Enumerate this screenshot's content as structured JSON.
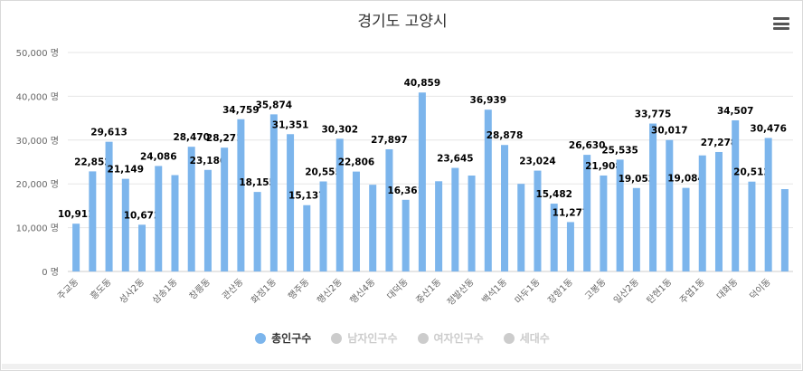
{
  "chart_data": {
    "type": "bar",
    "title": "경기도 고양시",
    "ylim": [
      0,
      50000
    ],
    "yticks": [
      {
        "value": 0,
        "label": "0 명"
      },
      {
        "value": 10000,
        "label": "10,000 명"
      },
      {
        "value": 20000,
        "label": "20,000 명"
      },
      {
        "value": 30000,
        "label": "30,000 명"
      },
      {
        "value": 40000,
        "label": "40,000 명"
      },
      {
        "value": 50000,
        "label": "50,000 명"
      }
    ],
    "grid": true,
    "legend": "bottom",
    "xtick_labels": [
      "주교동",
      "흥도동",
      "성사2동",
      "삼송1동",
      "창릉동",
      "관산동",
      "화정1동",
      "행주동",
      "행신2동",
      "행신4동",
      "대덕동",
      "중산1동",
      "정발산동",
      "백석1동",
      "마두1동",
      "장항1동",
      "고봉동",
      "일산2동",
      "탄현1동",
      "주엽1동",
      "대화동",
      "덕이동"
    ],
    "values": [
      10911,
      22852,
      29613,
      21149,
      10672,
      24086,
      22000,
      28470,
      23186,
      28271,
      34759,
      18155,
      35874,
      31351,
      15137,
      20555,
      30302,
      22806,
      19800,
      27897,
      16361,
      40859,
      20600,
      23645,
      21900,
      36939,
      28878,
      20000,
      23024,
      15482,
      11277,
      26630,
      21908,
      25535,
      19053,
      33775,
      30017,
      19084,
      26500,
      27278,
      34507,
      20512,
      30476,
      18800
    ],
    "labeled_indices": [
      0,
      1,
      2,
      3,
      4,
      5,
      7,
      8,
      9,
      10,
      11,
      12,
      13,
      14,
      15,
      16,
      17,
      19,
      20,
      21,
      23,
      25,
      26,
      28,
      29,
      30,
      31,
      32,
      33,
      34,
      35,
      36,
      37,
      39,
      40,
      41,
      42
    ],
    "data_labels": [
      "10,911",
      "22,852",
      "29,613",
      "21,149",
      "10,672",
      "24,086",
      "",
      "28,470",
      "23,186",
      "28,271",
      "34,759",
      "18,155",
      "35,874",
      "31,351",
      "15,137",
      "20,555",
      "30,302",
      "22,806",
      "",
      "27,897",
      "16,361",
      "40,859",
      "",
      "23,645",
      "",
      "36,939",
      "28,878",
      "",
      "23,024",
      "15,482",
      "11,277",
      "26,630",
      "21,908",
      "25,535",
      "19,053",
      "33,775",
      "30,017",
      "19,084",
      "",
      "27,278",
      "34,507",
      "20,512",
      "30,476",
      ""
    ],
    "series_color": "#7cb5ec"
  },
  "legend": [
    {
      "label": "총인구수",
      "color": "#7cb5ec",
      "active": true
    },
    {
      "label": "남자인구수",
      "color": "#cccccc",
      "active": false
    },
    {
      "label": "여자인구수",
      "color": "#cccccc",
      "active": false
    },
    {
      "label": "세대수",
      "color": "#cccccc",
      "active": false
    }
  ],
  "menu_icon": "hamburger-menu-icon"
}
